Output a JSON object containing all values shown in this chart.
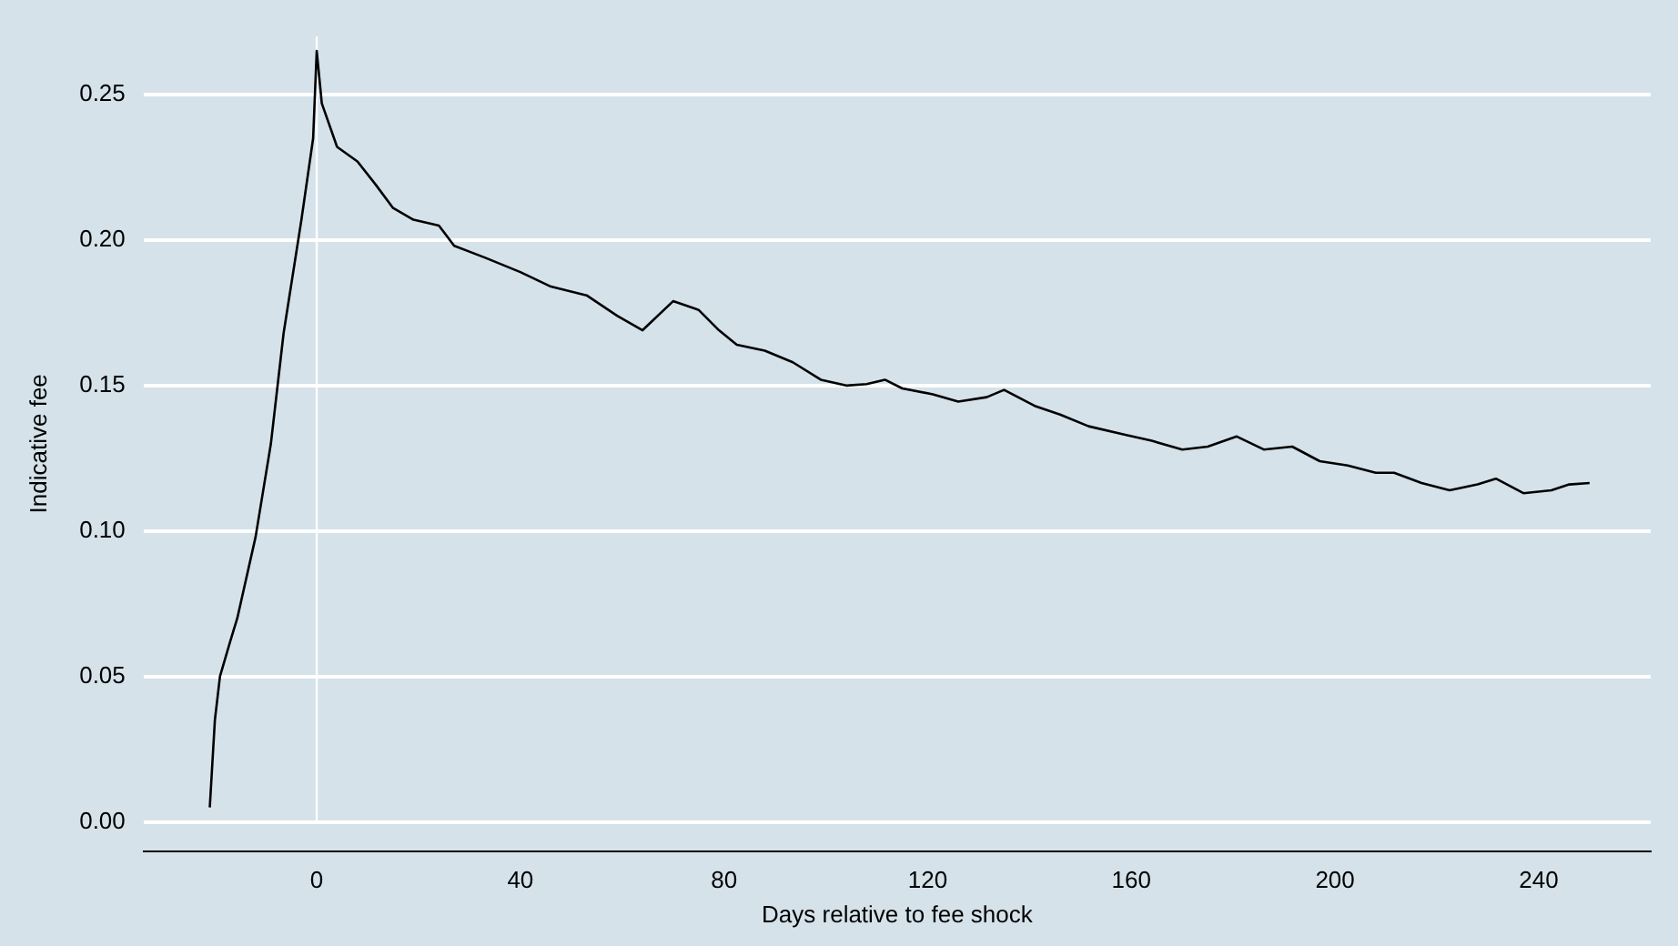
{
  "chart_data": {
    "type": "line",
    "xlabel": "Days relative to fee shock",
    "ylabel": "Indicative fee",
    "x": [
      -21,
      -20,
      -19,
      -17,
      -15.6,
      -12,
      -9,
      -6.5,
      -3,
      -0.7,
      0,
      1,
      4,
      8,
      11.6,
      15,
      19,
      24,
      27,
      33,
      40,
      46,
      53,
      59,
      64,
      70,
      75,
      79,
      82.5,
      88,
      93.5,
      99,
      104,
      108,
      111.6,
      115,
      121,
      126,
      131.6,
      135,
      141,
      146,
      151.6,
      159,
      164,
      170,
      175,
      180.7,
      186,
      191.6,
      197,
      202.5,
      208,
      211.6,
      217,
      222.5,
      228,
      231.6,
      237,
      242.5,
      246,
      250
    ],
    "series": [
      {
        "color": "#000000",
        "values": [
          0.005,
          0.035,
          0.05,
          0.062,
          0.07,
          0.098,
          0.13,
          0.168,
          0.207,
          0.235,
          0.265,
          0.247,
          0.232,
          0.227,
          0.219,
          0.211,
          0.207,
          0.205,
          0.198,
          0.194,
          0.189,
          0.184,
          0.181,
          0.174,
          0.169,
          0.179,
          0.176,
          0.169,
          0.164,
          0.162,
          0.158,
          0.152,
          0.15,
          0.1505,
          0.152,
          0.149,
          0.147,
          0.1445,
          0.146,
          0.1485,
          0.143,
          0.14,
          0.136,
          0.133,
          0.131,
          0.128,
          0.129,
          0.1325,
          0.128,
          0.129,
          0.124,
          0.1225,
          0.12,
          0.12,
          0.1165,
          0.114,
          0.116,
          0.118,
          0.113,
          0.114,
          0.116,
          0.1165
        ]
      }
    ],
    "xlim": [
      -34,
      262
    ],
    "xticks": [
      0,
      40,
      80,
      120,
      160,
      200,
      240
    ],
    "ylim": [
      -0.01,
      0.27
    ],
    "yticks": [
      {
        "value": 0,
        "label": "0.00"
      },
      {
        "value": 0.05,
        "label": "0.05"
      },
      {
        "value": 0.1,
        "label": "0.10"
      },
      {
        "value": 0.15,
        "label": "0.15"
      },
      {
        "value": 0.2,
        "label": "0.20"
      },
      {
        "value": 0.25,
        "label": "0.25"
      }
    ],
    "grid": "y",
    "legend": false,
    "marker": "none",
    "line_style": "solid",
    "ref_lines": [
      {
        "axis": "x",
        "value": 0,
        "color": "#ffffff"
      }
    ]
  }
}
